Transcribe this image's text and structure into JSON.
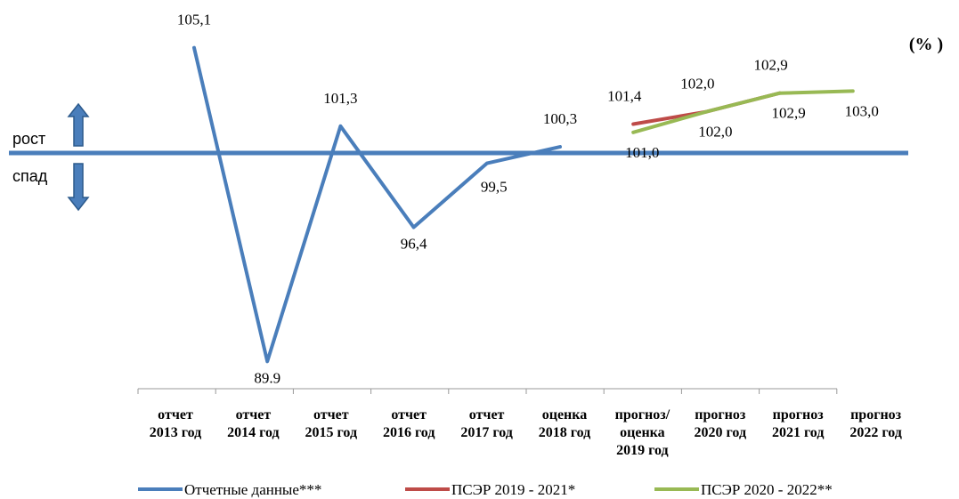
{
  "chart_data": {
    "type": "line",
    "unit_label": "(% )",
    "up_label": "рост",
    "down_label": "спад",
    "baseline": 100,
    "categories": [
      "отчет\n2013 год",
      "отчет\n2014 год",
      "отчет\n2015 год",
      "отчет\n2016 год",
      "отчет\n2017 год",
      "оценка\n2018 год",
      "прогноз/\nоценка\n2019 год",
      "прогноз\n2020 год",
      "прогноз\n2021 год",
      "прогноз\n2022 год"
    ],
    "series": [
      {
        "name": "Отчетные данные***",
        "color": "#4a7ebb",
        "values": [
          105.1,
          89.9,
          101.3,
          96.4,
          99.5,
          100.3,
          null,
          null,
          null,
          null
        ],
        "value_labels": [
          "105,1",
          "89.9",
          "101,3",
          "96,4",
          "99,5",
          "100,3",
          null,
          null,
          null,
          null
        ]
      },
      {
        "name": "ПСЭР 2019 - 2021*",
        "color": "#be4b48",
        "values": [
          null,
          null,
          null,
          null,
          null,
          null,
          101.4,
          102.0,
          102.9,
          null
        ],
        "value_labels": [
          null,
          null,
          null,
          null,
          null,
          null,
          "101,4",
          "102,0",
          "102,9",
          null
        ]
      },
      {
        "name": "ПСЭР 2020 - 2022**",
        "color": "#98b954",
        "values": [
          null,
          null,
          null,
          null,
          null,
          null,
          101.0,
          102.0,
          102.9,
          103.0
        ],
        "value_labels": [
          null,
          null,
          null,
          null,
          null,
          null,
          "101,0",
          "102,0",
          "102,9",
          "103,0"
        ]
      }
    ],
    "ylim": [
      88,
      106
    ]
  }
}
